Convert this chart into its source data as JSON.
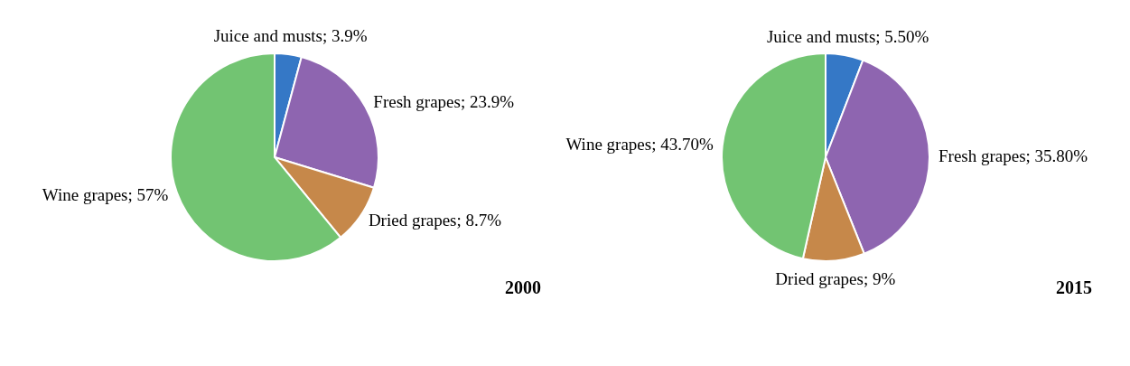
{
  "chart_data": [
    {
      "type": "pie",
      "title": "2000",
      "categories": [
        "Juice and musts",
        "Fresh grapes",
        "Dried grapes",
        "Wine grapes"
      ],
      "values": [
        3.9,
        23.9,
        8.7,
        57
      ],
      "value_labels": [
        "3.9%",
        "23.9%",
        "8.7%",
        "57%"
      ],
      "colors": [
        "#3578c6",
        "#8e65b0",
        "#c6884a",
        "#72c472"
      ],
      "legend": false
    },
    {
      "type": "pie",
      "title": "2015",
      "categories": [
        "Juice and musts",
        "Fresh grapes",
        "Dried grapes",
        "Wine grapes"
      ],
      "values": [
        5.5,
        35.8,
        9,
        43.7
      ],
      "value_labels": [
        "5.50%",
        "35.80%",
        "9%",
        "43.70%"
      ],
      "colors": [
        "#3578c6",
        "#8e65b0",
        "#c6884a",
        "#72c472"
      ],
      "legend": false
    }
  ]
}
